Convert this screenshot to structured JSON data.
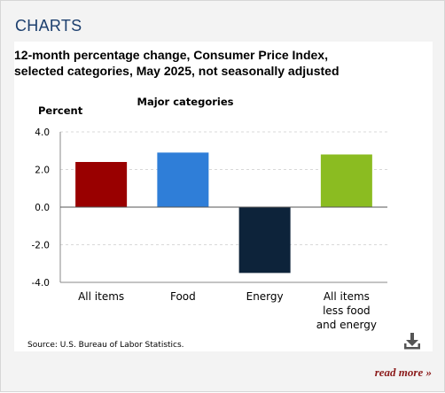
{
  "panel": {
    "heading": "CHARTS",
    "read_more_label": "read more »"
  },
  "chart_data": {
    "type": "bar",
    "title": "12-month percentage change, Consumer Price Index,\nselected categories, May 2025, not seasonally adjusted",
    "subtitle": "Major categories",
    "ylabel": "Percent",
    "categories": [
      "All items",
      "Food",
      "Energy",
      "All items\nless food\nand energy"
    ],
    "values": [
      2.4,
      2.9,
      -3.5,
      2.8
    ],
    "colors": [
      "#990000",
      "#2f7ed8",
      "#0d233a",
      "#8bbc21"
    ],
    "ylim": [
      -4.0,
      4.0
    ],
    "yticks": [
      "4.0",
      "2.0",
      "0.0",
      "-2.0",
      "-4.0"
    ],
    "ytick_values": [
      4,
      2,
      0,
      -2,
      -4
    ],
    "grid": true,
    "source": "Source: U.S. Bureau of Labor Statistics."
  },
  "icons": {
    "download": "download-icon"
  }
}
